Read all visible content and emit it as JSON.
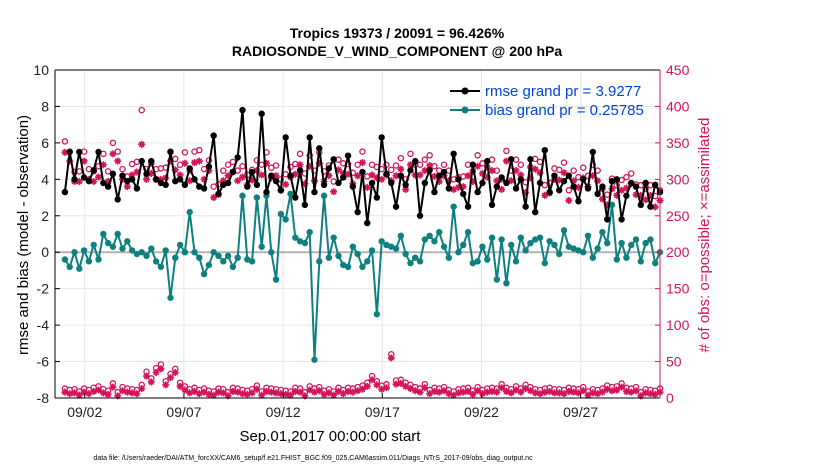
{
  "chart_data": {
    "type": "line",
    "title_line1": "Tropics 19373 / 20091 = 96.426%",
    "title_line2": "RADIOSONDE_V_WIND_COMPONENT @ 200 hPa",
    "xlabel": "Sep.01,2017 00:00:00 start",
    "ylabel_left": "rmse and bias (model - observation)",
    "ylabel_right": "# of obs: o=possible; ×=assimilated",
    "xlim": [
      0.5,
      31
    ],
    "ylim_left": [
      -8,
      10
    ],
    "ylim_right": [
      0,
      450
    ],
    "x_ticks": [
      {
        "x": 2,
        "label": "09/02"
      },
      {
        "x": 7,
        "label": "09/07"
      },
      {
        "x": 12,
        "label": "09/12"
      },
      {
        "x": 17,
        "label": "09/17"
      },
      {
        "x": 22,
        "label": "09/22"
      },
      {
        "x": 27,
        "label": "09/27"
      }
    ],
    "y_ticks_left": [
      "10",
      "8",
      "6",
      "4",
      "2",
      "0",
      "-2",
      "-4",
      "-6",
      "-8"
    ],
    "y_ticks_right": [
      "450",
      "400",
      "350",
      "300",
      "250",
      "200",
      "150",
      "100",
      "50",
      "0"
    ],
    "colors": {
      "rmse": "#000000",
      "bias": "#0f8080",
      "obs": "#d4145a",
      "grid": "#e6e6e6",
      "zero": "#b4b4b4",
      "legend_text": "#0044dd"
    },
    "legend": [
      {
        "label": "rmse grand pr = 3.9277",
        "series": "rmse"
      },
      {
        "label": "bias grand pr = 0.25785",
        "series": "bias"
      }
    ],
    "rmse": [
      3.3,
      5.5,
      4.0,
      5.5,
      4.1,
      3.9,
      4.5,
      5.5,
      3.8,
      3.6,
      4.3,
      2.9,
      4.2,
      3.9,
      4.0,
      3.5,
      5.0,
      4.3,
      5.0,
      4.0,
      3.8,
      3.7,
      5.5,
      3.9,
      4.0,
      3.7,
      4.6,
      4.0,
      3.6,
      3.5,
      4.7,
      6.4,
      3.2,
      3.7,
      3.8,
      4.4,
      5.2,
      7.8,
      3.6,
      4.4,
      3.7,
      7.6,
      3.3,
      4.2,
      3.9,
      3.4,
      6.3,
      4.2,
      3.0,
      4.5,
      2.6,
      6.3,
      3.3,
      5.7,
      3.7,
      4.6,
      5.1,
      3.8,
      4.1,
      5.3,
      3.6,
      2.2,
      4.4,
      1.6,
      3.8,
      3.0,
      6.3,
      4.3,
      3.8,
      2.5,
      4.2,
      3.7,
      4.5,
      5.0,
      2.0,
      3.8,
      4.5,
      3.3,
      4.2,
      4.4,
      3.5,
      5.4,
      4.0,
      3.2,
      2.5,
      4.8,
      3.3,
      3.8,
      5.0,
      2.6,
      3.6,
      4.1,
      3.8,
      5.1,
      3.5,
      4.0,
      2.5,
      5.1,
      2.2,
      3.8,
      5.6,
      3.3,
      4.2,
      3.4,
      3.9,
      4.2,
      3.6,
      2.8,
      4.0,
      3.5,
      5.5,
      3.2,
      3.6,
      1.8,
      3.9,
      4.0,
      1.8,
      3.1,
      3.8,
      3.6,
      2.6,
      3.8,
      2.5,
      3.7,
      3.3
    ],
    "bias": [
      -0.4,
      -0.8,
      0.0,
      -0.9,
      0.1,
      -0.5,
      0.4,
      -0.4,
      1.0,
      0.5,
      0.3,
      1.0,
      0.2,
      0.6,
      0.1,
      -0.1,
      0.0,
      -0.2,
      0.2,
      -0.5,
      -0.8,
      0.1,
      -2.5,
      -0.3,
      0.4,
      0.0,
      2.2,
      0.0,
      -0.3,
      -1.2,
      -0.7,
      0.0,
      -0.2,
      -0.5,
      -0.2,
      -0.8,
      -0.3,
      3.1,
      -0.4,
      -0.5,
      3.0,
      0.3,
      3.1,
      0.0,
      -1.5,
      2.1,
      1.8,
      3.2,
      0.8,
      0.6,
      0.5,
      1.1,
      -5.9,
      -0.5,
      3.1,
      -0.3,
      0.8,
      -0.2,
      -0.7,
      -0.8,
      0.3,
      -0.1,
      -0.8,
      -0.5,
      0.1,
      -3.4,
      0.6,
      0.4,
      0.3,
      0.2,
      0.9,
      -0.1,
      -0.6,
      -0.3,
      -0.5,
      0.7,
      0.9,
      0.6,
      1.1,
      0.3,
      -0.3,
      2.5,
      0.0,
      0.4,
      1.1,
      -0.6,
      -0.5,
      0.3,
      -0.4,
      0.8,
      -1.5,
      0.7,
      -1.7,
      0.4,
      -0.5,
      0.8,
      0.1,
      0.5,
      0.7,
      0.8,
      -0.6,
      0.6,
      0.4,
      -0.1,
      1.2,
      0.3,
      0.2,
      0.1,
      0.0,
      0.9,
      -0.3,
      0.2,
      1.1,
      0.5,
      2.6,
      -0.4,
      0.5,
      -0.3,
      0.4,
      0.7,
      -0.5,
      0.5,
      0.7,
      -0.6,
      0.0
    ],
    "obs_assimilated": [
      8,
      6,
      7,
      4,
      8,
      6,
      9,
      11,
      7,
      5,
      15,
      3,
      10,
      8,
      7,
      6,
      13,
      30,
      22,
      35,
      40,
      18,
      28,
      35,
      16,
      11,
      7,
      9,
      6,
      8,
      5,
      4,
      8,
      7,
      3,
      9,
      8,
      6,
      5,
      7,
      12,
      4,
      9,
      8,
      7,
      6,
      5,
      4,
      9,
      8,
      3,
      11,
      8,
      10,
      5,
      7,
      4,
      9,
      6,
      9,
      8,
      10,
      12,
      16,
      25,
      18,
      12,
      14,
      55,
      19,
      20,
      16,
      13,
      10,
      8,
      14,
      6,
      9,
      8,
      10,
      6,
      4,
      7,
      8,
      9,
      5,
      10,
      6,
      8,
      9,
      8,
      14,
      9,
      7,
      11,
      8,
      13,
      10,
      7,
      6,
      8,
      9,
      7,
      7,
      6,
      9,
      8,
      7,
      10,
      4,
      7,
      6,
      8,
      12,
      10,
      11,
      15,
      9,
      8,
      10,
      3,
      7,
      6,
      5,
      8
    ],
    "obs_possible": [
      13,
      11,
      12,
      9,
      13,
      11,
      14,
      16,
      12,
      10,
      20,
      8,
      15,
      13,
      12,
      11,
      18,
      36,
      27,
      41,
      46,
      23,
      33,
      40,
      21,
      16,
      12,
      14,
      11,
      13,
      10,
      9,
      13,
      12,
      8,
      14,
      13,
      11,
      10,
      12,
      17,
      9,
      14,
      13,
      12,
      11,
      10,
      9,
      14,
      13,
      8,
      16,
      13,
      15,
      10,
      12,
      9,
      14,
      11,
      14,
      13,
      15,
      17,
      21,
      30,
      23,
      17,
      19,
      60,
      24,
      25,
      21,
      18,
      15,
      13,
      19,
      11,
      14,
      13,
      15,
      11,
      9,
      12,
      13,
      14,
      10,
      15,
      11,
      13,
      14,
      13,
      19,
      14,
      12,
      16,
      13,
      18,
      15,
      12,
      11,
      13,
      14,
      12,
      12,
      11,
      14,
      13,
      12,
      15,
      9,
      12,
      11,
      13,
      17,
      15,
      16,
      20,
      14,
      13,
      15,
      8,
      12,
      11,
      10,
      13
    ],
    "assim_upper": [
      337,
      325,
      297,
      297,
      325,
      300,
      297,
      303,
      320,
      297,
      335,
      325,
      300,
      290,
      306,
      310,
      348,
      300,
      308,
      300,
      300,
      302,
      325,
      313,
      306,
      322,
      298,
      323,
      325,
      300,
      312,
      275,
      279,
      298,
      305,
      310,
      298,
      303,
      292,
      299,
      312,
      306,
      322,
      302,
      305,
      285,
      293,
      303,
      307,
      320,
      294,
      318,
      298,
      322,
      297,
      305,
      283,
      313,
      308,
      307,
      294,
      305,
      323,
      289,
      306,
      302,
      300,
      306,
      298,
      305,
      314,
      286,
      320,
      306,
      306,
      312,
      319,
      304,
      297,
      305,
      298,
      286,
      289,
      290,
      305,
      297,
      318,
      308,
      303,
      312,
      298,
      286,
      325,
      298,
      312,
      306,
      282,
      302,
      314,
      309,
      278,
      281,
      300,
      299,
      309,
      271,
      298,
      289,
      302,
      290,
      305,
      298,
      273,
      265,
      287,
      278,
      285,
      288,
      294,
      279,
      278,
      272,
      278,
      262,
      271
    ],
    "poss_upper": [
      352,
      338,
      310,
      311,
      338,
      314,
      311,
      318,
      335,
      311,
      350,
      338,
      314,
      304,
      321,
      324,
      395,
      314,
      322,
      314,
      315,
      316,
      338,
      328,
      320,
      337,
      312,
      338,
      340,
      314,
      326,
      290,
      293,
      312,
      320,
      324,
      312,
      318,
      306,
      313,
      326,
      320,
      337,
      316,
      319,
      300,
      307,
      317,
      321,
      335,
      308,
      333,
      312,
      337,
      311,
      319,
      297,
      327,
      322,
      321,
      309,
      320,
      338,
      304,
      320,
      317,
      314,
      320,
      313,
      319,
      329,
      300,
      335,
      320,
      320,
      327,
      333,
      318,
      312,
      320,
      312,
      300,
      303,
      304,
      320,
      311,
      333,
      322,
      317,
      327,
      312,
      300,
      339,
      312,
      327,
      320,
      296,
      317,
      328,
      324,
      292,
      295,
      315,
      313,
      323,
      285,
      312,
      303,
      316,
      305,
      320,
      312,
      287,
      279,
      301,
      292,
      299,
      303,
      308,
      293,
      292,
      287,
      292,
      277,
      285
    ]
  }
}
